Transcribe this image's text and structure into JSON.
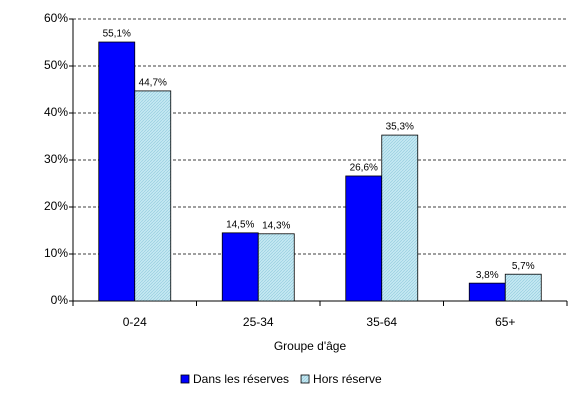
{
  "chart_data": {
    "type": "bar",
    "x_label": "Groupe d'âge",
    "categories": [
      "0-24",
      "25-34",
      "35-64",
      "65+"
    ],
    "series": [
      {
        "name": "Dans les réserves",
        "color": "#0000ff",
        "values": [
          55.1,
          14.5,
          26.6,
          3.8
        ],
        "value_labels": [
          "55,1%",
          "14,5%",
          "26,6%",
          "3,8%"
        ]
      },
      {
        "name": "Hors réserve",
        "color": "#c4e8f2",
        "values": [
          44.7,
          14.3,
          35.3,
          5.7
        ],
        "value_labels": [
          "44,7%",
          "14,3%",
          "35,3%",
          "5,7%"
        ]
      }
    ],
    "ylim": [
      0,
      60
    ],
    "yticks": [
      {
        "value": 0,
        "label": "0%"
      },
      {
        "value": 10,
        "label": "10%"
      },
      {
        "value": 20,
        "label": "20%"
      },
      {
        "value": 30,
        "label": "30%"
      },
      {
        "value": 40,
        "label": "40%"
      },
      {
        "value": 50,
        "label": "50%"
      },
      {
        "value": 60,
        "label": "60%"
      }
    ],
    "grid": true,
    "legend": "bottom"
  }
}
